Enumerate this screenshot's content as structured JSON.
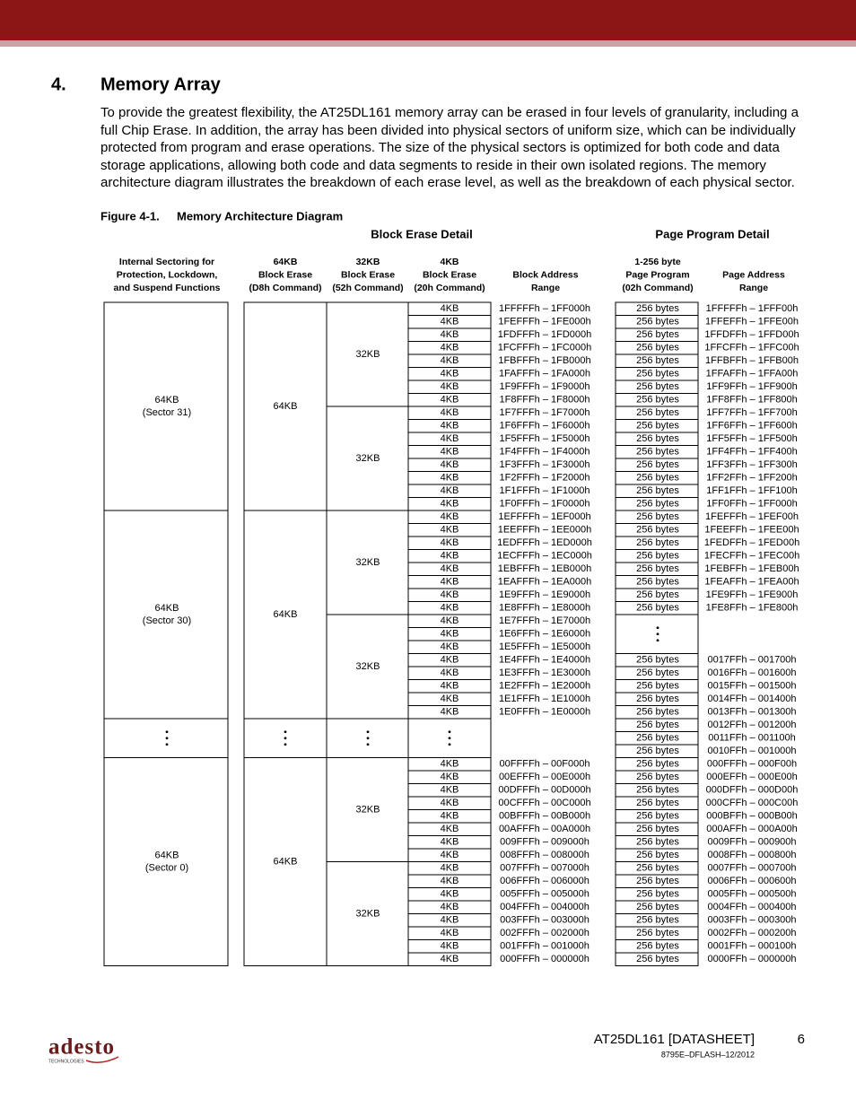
{
  "section": {
    "number": "4.",
    "title": "Memory Array"
  },
  "paragraph": "To provide the greatest flexibility, the AT25DL161 memory array can be erased in four levels of granularity, including a full Chip Erase. In addition, the array has been divided into physical sectors of uniform size, which can be individually protected from program and erase operations. The size of the physical sectors is optimized for both code and data storage applications, allowing both code and data segments to reside in their own isolated regions. The memory architecture diagram illustrates the breakdown of each erase level, as well as the breakdown of each physical sector.",
  "figure": {
    "label": "Figure 4-1.",
    "title": "Memory Architecture Diagram"
  },
  "diagram": {
    "group_headers": [
      "Block Erase Detail",
      "Page Program Detail"
    ],
    "column_headers": [
      [
        "Internal Sectoring for",
        "Protection, Lockdown,",
        "and Suspend Functions"
      ],
      [
        "64KB",
        "Block Erase",
        "(D8h Command)"
      ],
      [
        "32KB",
        "Block Erase",
        "(52h Command)"
      ],
      [
        "4KB",
        "Block Erase",
        "(20h Command)"
      ],
      [
        "Block Address",
        "Range"
      ],
      [
        "1-256 byte",
        "Page Program",
        "(02h Command)"
      ],
      [
        "Page Address",
        "Range"
      ]
    ],
    "sectors": [
      {
        "size": "64KB",
        "name": "(Sector 31)"
      },
      {
        "size": "64KB",
        "name": "(Sector 30)"
      },
      {
        "size": "64KB",
        "name": "(Sector 0)"
      }
    ],
    "blocks_64kb": [
      "64KB",
      "64KB",
      "64KB"
    ],
    "blocks_32kb": [
      "32KB",
      "32KB",
      "32KB",
      "32KB",
      "32KB",
      "32KB"
    ],
    "blocks_4kb": [
      "4KB",
      "4KB",
      "4KB",
      "4KB",
      "4KB",
      "4KB",
      "4KB",
      "4KB",
      "4KB",
      "4KB",
      "4KB",
      "4KB",
      "4KB",
      "4KB",
      "4KB",
      "4KB",
      "4KB",
      "4KB",
      "4KB",
      "4KB",
      "4KB",
      "4KB",
      "4KB",
      "4KB",
      "4KB",
      "4KB",
      "4KB",
      "4KB",
      "4KB",
      "4KB",
      "4KB",
      "4KB",
      "4KB",
      "4KB",
      "4KB",
      "4KB",
      "4KB",
      "4KB",
      "4KB",
      "4KB",
      "4KB",
      "4KB",
      "4KB",
      "4KB",
      "4KB",
      "4KB",
      "4KB",
      "4KB"
    ],
    "block_addresses": [
      "1FFFFFh – 1FF000h",
      "1FEFFFh – 1FE000h",
      "1FDFFFh – 1FD000h",
      "1FCFFFh – 1FC000h",
      "1FBFFFh – 1FB000h",
      "1FAFFFh – 1FA000h",
      "1F9FFFh – 1F9000h",
      "1F8FFFh – 1F8000h",
      "1F7FFFh – 1F7000h",
      "1F6FFFh – 1F6000h",
      "1F5FFFh – 1F5000h",
      "1F4FFFh – 1F4000h",
      "1F3FFFh – 1F3000h",
      "1F2FFFh – 1F2000h",
      "1F1FFFh – 1F1000h",
      "1F0FFFh – 1F0000h",
      "1EFFFFh – 1EF000h",
      "1EEFFFh – 1EE000h",
      "1EDFFFh – 1ED000h",
      "1ECFFFh – 1EC000h",
      "1EBFFFh – 1EB000h",
      "1EAFFFh – 1EA000h",
      "1E9FFFh – 1E9000h",
      "1E8FFFh – 1E8000h",
      "1E7FFFh – 1E7000h",
      "1E6FFFh – 1E6000h",
      "1E5FFFh – 1E5000h",
      "1E4FFFh – 1E4000h",
      "1E3FFFh – 1E3000h",
      "1E2FFFh – 1E2000h",
      "1E1FFFh – 1E1000h",
      "1E0FFFh – 1E0000h",
      "00FFFFh – 00F000h",
      "00EFFFh – 00E000h",
      "00DFFFh – 00D000h",
      "00CFFFh – 00C000h",
      "00BFFFh – 00B000h",
      "00AFFFh – 00A000h",
      "009FFFh – 009000h",
      "008FFFh – 008000h",
      "007FFFh – 007000h",
      "006FFFh – 006000h",
      "005FFFh – 005000h",
      "004FFFh – 004000h",
      "003FFFh – 003000h",
      "002FFFh – 002000h",
      "001FFFh – 001000h",
      "000FFFh – 000000h"
    ],
    "page_sizes": [
      "256 bytes",
      "256 bytes",
      "256 bytes",
      "256 bytes",
      "256 bytes",
      "256 bytes",
      "256 bytes",
      "256 bytes",
      "256 bytes",
      "256 bytes",
      "256 bytes",
      "256 bytes",
      "256 bytes",
      "256 bytes",
      "256 bytes",
      "256 bytes",
      "256 bytes",
      "256 bytes",
      "256 bytes",
      "256 bytes",
      "256 bytes",
      "256 bytes",
      "256 bytes",
      "256 bytes",
      "256 bytes",
      "256 bytes",
      "256 bytes",
      "256 bytes",
      "256 bytes",
      "256 bytes",
      "256 bytes",
      "256 bytes",
      "256 bytes",
      "256 bytes",
      "256 bytes",
      "256 bytes",
      "256 bytes",
      "256 bytes",
      "256 bytes",
      "256 bytes",
      "256 bytes",
      "256 bytes",
      "256 bytes",
      "256 bytes",
      "256 bytes",
      "256 bytes",
      "256 bytes",
      "256 bytes"
    ],
    "page_addresses": [
      "1FFFFFh – 1FFF00h",
      "1FFEFFh – 1FFE00h",
      "1FFDFFh – 1FFD00h",
      "1FFCFFh – 1FFC00h",
      "1FFBFFh – 1FFB00h",
      "1FFAFFh – 1FFA00h",
      "1FF9FFh – 1FF900h",
      "1FF8FFh – 1FF800h",
      "1FF7FFh – 1FF700h",
      "1FF6FFh – 1FF600h",
      "1FF5FFh – 1FF500h",
      "1FF4FFh – 1FF400h",
      "1FF3FFh – 1FF300h",
      "1FF2FFh – 1FF200h",
      "1FF1FFh – 1FF100h",
      "1FF0FFh – 1FF000h",
      "1FEFFFh – 1FEF00h",
      "1FEEFFh – 1FEE00h",
      "1FEDFFh – 1FED00h",
      "1FECFFh – 1FEC00h",
      "1FEBFFh – 1FEB00h",
      "1FEAFFh – 1FEA00h",
      "1FE9FFh – 1FE900h",
      "1FE8FFh – 1FE800h",
      "0017FFh – 001700h",
      "0016FFh – 001600h",
      "0015FFh – 001500h",
      "0014FFh – 001400h",
      "0013FFh – 001300h",
      "0012FFh – 001200h",
      "0011FFh – 001100h",
      "0010FFh – 001000h",
      "000FFFh – 000F00h",
      "000EFFh – 000E00h",
      "000DFFh – 000D00h",
      "000CFFh – 000C00h",
      "000BFFh – 000B00h",
      "000AFFh – 000A00h",
      "0009FFh – 000900h",
      "0008FFh – 000800h",
      "0007FFh – 000700h",
      "0006FFh – 000600h",
      "0005FFh – 000500h",
      "0004FFh – 000400h",
      "0003FFh – 000300h",
      "0002FFh – 000200h",
      "0001FFh – 000100h",
      "0000FFh – 000000h"
    ]
  },
  "footer": {
    "logo": "adesto",
    "logo_tagline": "TECHNOLOGIES",
    "document": "AT25DL161 [DATASHEET]",
    "page": "6",
    "code": "8795E–DFLASH–12/2012"
  }
}
